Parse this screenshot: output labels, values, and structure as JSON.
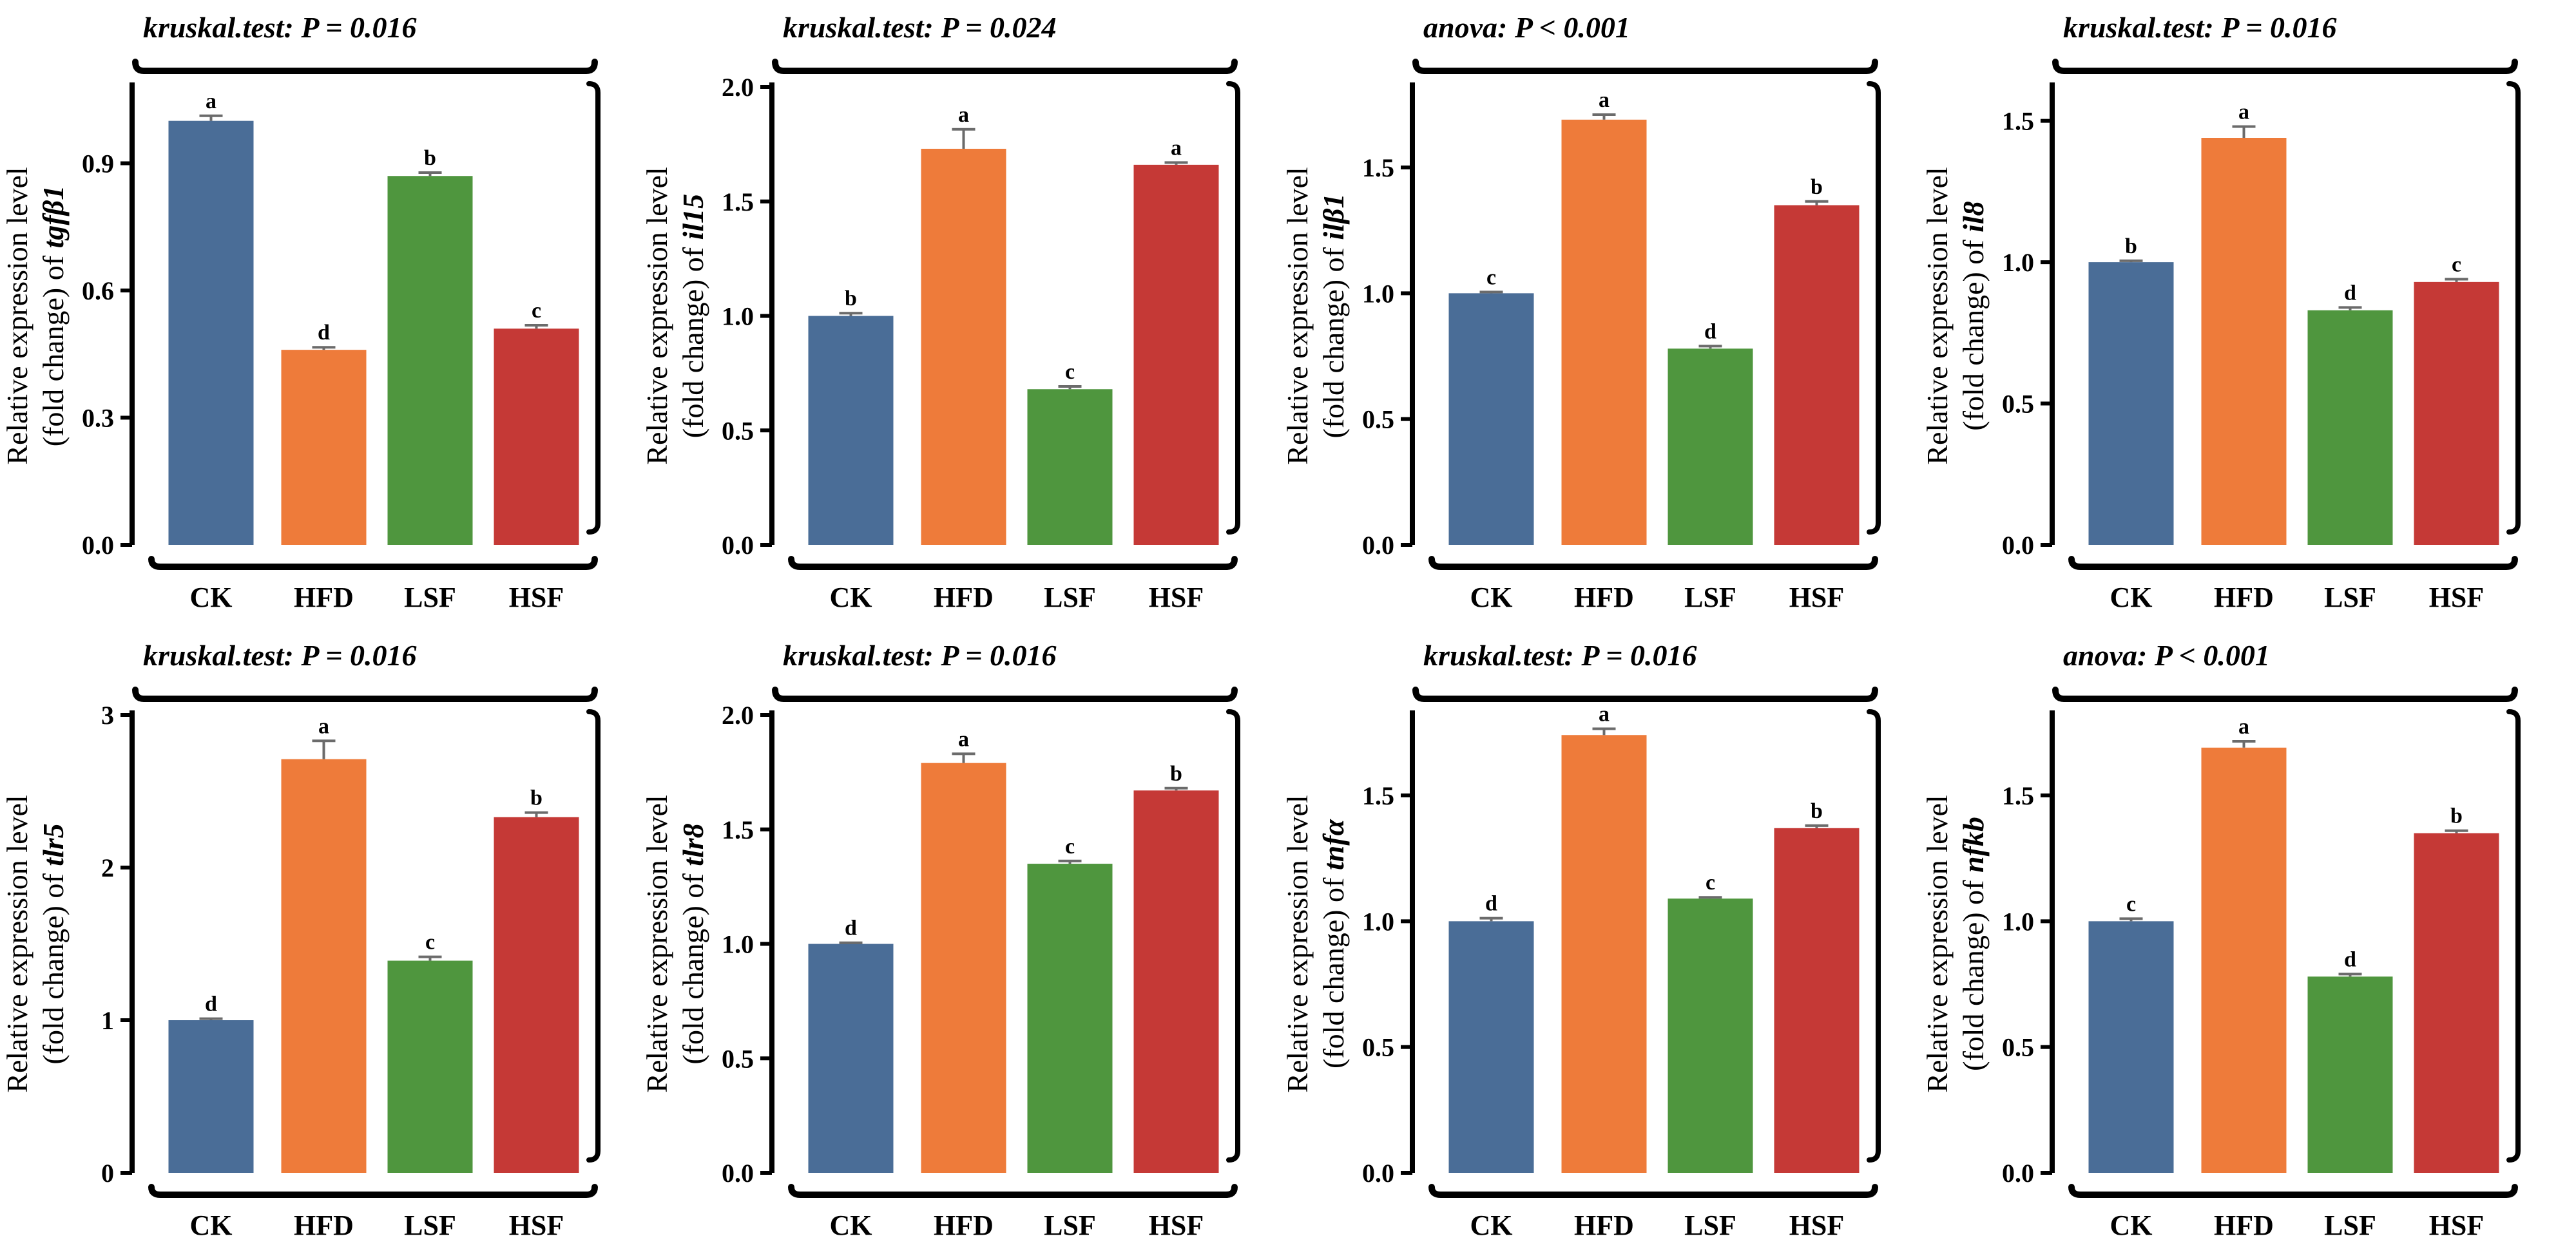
{
  "categories": [
    "CK",
    "HFD",
    "LSF",
    "HSF"
  ],
  "colors": {
    "CK": "#4a6d97",
    "HFD": "#ee7b3a",
    "LSF": "#4f963e",
    "HSF": "#c53936",
    "errbar": "#6b6b6b"
  },
  "ylabel_line1": "Relative expression level",
  "ylabel_prefix": "(fold change) of ",
  "chart_data": [
    {
      "type": "bar",
      "title": "kruskal.test: P = 0.016",
      "gene": "tgfβ1",
      "values": [
        1.0,
        0.46,
        0.87,
        0.51
      ],
      "errors": [
        0.012,
        0.006,
        0.008,
        0.008
      ],
      "letters": [
        "a",
        "d",
        "b",
        "c"
      ],
      "ylim": [
        0,
        1.08
      ],
      "yticks": [
        0.0,
        0.3,
        0.6,
        0.9
      ],
      "ytick_labels": [
        "0.0",
        "0.3",
        "0.6",
        "0.9"
      ]
    },
    {
      "type": "bar",
      "title": "kruskal.test: P = 0.024",
      "gene": "il15",
      "values": [
        1.0,
        1.73,
        0.68,
        1.66
      ],
      "errors": [
        0.012,
        0.085,
        0.012,
        0.01
      ],
      "letters": [
        "b",
        "a",
        "c",
        "a"
      ],
      "ylim": [
        0,
        2.0
      ],
      "yticks": [
        0.0,
        0.5,
        1.0,
        1.5,
        2.0
      ],
      "ytick_labels": [
        "0.0",
        "0.5",
        "1.0",
        "1.5",
        "2.0"
      ]
    },
    {
      "type": "bar",
      "title": "anova: P < 0.001",
      "gene": "ilβ1",
      "values": [
        1.0,
        1.69,
        0.78,
        1.35
      ],
      "errors": [
        0.005,
        0.02,
        0.01,
        0.015
      ],
      "letters": [
        "c",
        "a",
        "d",
        "b"
      ],
      "ylim": [
        0,
        1.82
      ],
      "yticks": [
        0.0,
        0.5,
        1.0,
        1.5
      ],
      "ytick_labels": [
        "0.0",
        "0.5",
        "1.0",
        "1.5"
      ]
    },
    {
      "type": "bar",
      "title": "kruskal.test: P = 0.016",
      "gene": "il8",
      "values": [
        1.0,
        1.44,
        0.83,
        0.93
      ],
      "errors": [
        0.005,
        0.04,
        0.01,
        0.01
      ],
      "letters": [
        "b",
        "a",
        "d",
        "c"
      ],
      "ylim": [
        0,
        1.62
      ],
      "yticks": [
        0.0,
        0.5,
        1.0,
        1.5
      ],
      "ytick_labels": [
        "0.0",
        "0.5",
        "1.0",
        "1.5"
      ]
    },
    {
      "type": "bar",
      "title": "kruskal.test: P = 0.016",
      "gene": "tlr5",
      "values": [
        1.0,
        2.71,
        1.39,
        2.33
      ],
      "errors": [
        0.01,
        0.12,
        0.025,
        0.03
      ],
      "letters": [
        "d",
        "a",
        "c",
        "b"
      ],
      "ylim": [
        0,
        3.0
      ],
      "yticks": [
        0,
        1,
        2,
        3
      ],
      "ytick_labels": [
        "0",
        "1",
        "2",
        "3"
      ]
    },
    {
      "type": "bar",
      "title": "kruskal.test: P = 0.016",
      "gene": "tlr8",
      "values": [
        1.0,
        1.79,
        1.35,
        1.67
      ],
      "errors": [
        0.005,
        0.04,
        0.012,
        0.01
      ],
      "letters": [
        "d",
        "a",
        "c",
        "b"
      ],
      "ylim": [
        0,
        2.0
      ],
      "yticks": [
        0.0,
        0.5,
        1.0,
        1.5,
        2.0
      ],
      "ytick_labels": [
        "0.0",
        "0.5",
        "1.0",
        "1.5",
        "2.0"
      ]
    },
    {
      "type": "bar",
      "title": "kruskal.test: P = 0.016",
      "gene": "tnfα",
      "values": [
        1.0,
        1.74,
        1.09,
        1.37
      ],
      "errors": [
        0.012,
        0.025,
        0.005,
        0.01
      ],
      "letters": [
        "d",
        "a",
        "c",
        "b"
      ],
      "ylim": [
        0,
        1.82
      ],
      "yticks": [
        0.0,
        0.5,
        1.0,
        1.5
      ],
      "ytick_labels": [
        "0.0",
        "0.5",
        "1.0",
        "1.5"
      ]
    },
    {
      "type": "bar",
      "title": "anova: P < 0.001",
      "gene": "nfkb",
      "values": [
        1.0,
        1.69,
        0.78,
        1.35
      ],
      "errors": [
        0.01,
        0.025,
        0.01,
        0.01
      ],
      "letters": [
        "c",
        "a",
        "d",
        "b"
      ],
      "ylim": [
        0,
        1.82
      ],
      "yticks": [
        0.0,
        0.5,
        1.0,
        1.5
      ],
      "ytick_labels": [
        "0.0",
        "0.5",
        "1.0",
        "1.5"
      ]
    }
  ]
}
